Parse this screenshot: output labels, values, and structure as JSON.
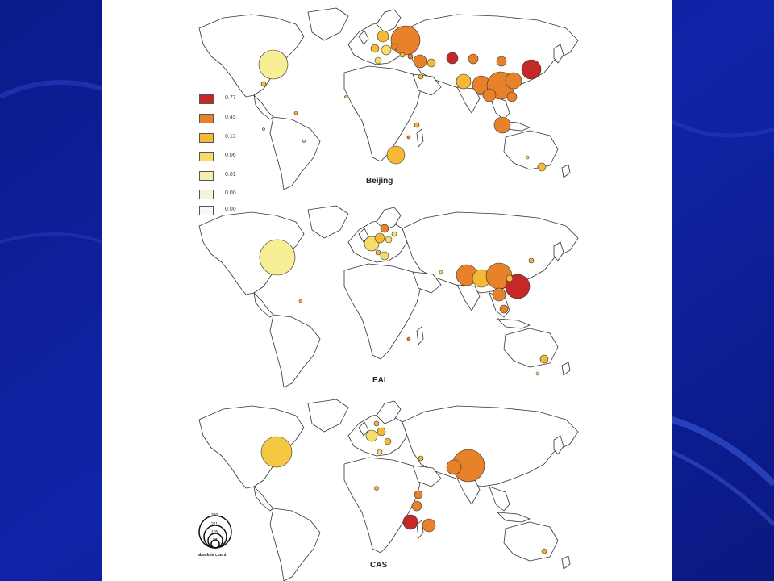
{
  "legend": {
    "bins": [
      {
        "label": "0.77",
        "color": "#c62828"
      },
      {
        "label": "0.45",
        "color": "#e8822a"
      },
      {
        "label": "0.13",
        "color": "#f5b934"
      },
      {
        "label": "0.06",
        "color": "#f7dc6a"
      },
      {
        "label": "0.01",
        "color": "#f6eeb0"
      },
      {
        "label": "0.00",
        "color": "#f8f4da"
      },
      {
        "label": "0.00",
        "color": "#fbfaf0"
      }
    ]
  },
  "size_legend": {
    "values": [
      "370",
      "211",
      "105",
      "37"
    ],
    "caption": "absolute count"
  },
  "maps": [
    {
      "title": "Beijing"
    },
    {
      "title": "EAI"
    },
    {
      "title": "CAS"
    }
  ]
}
